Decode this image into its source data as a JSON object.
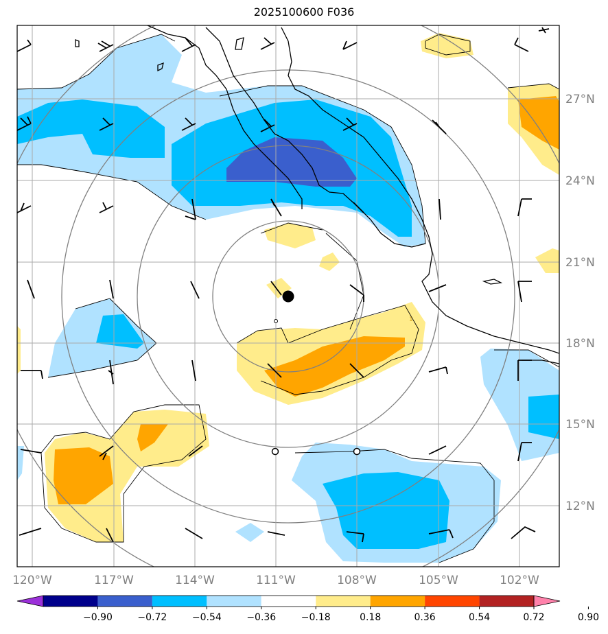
{
  "title": "2025100600 F036",
  "lon_labels": [
    "120°W",
    "117°W",
    "114°W",
    "111°W",
    "108°W",
    "105°W",
    "102°W"
  ],
  "lat_labels": [
    "27°N",
    "24°N",
    "21°N",
    "18°N",
    "15°N",
    "12°N"
  ],
  "colorbar": {
    "ticks": [
      "−0.90",
      "−0.72",
      "−0.54",
      "−0.36",
      "−0.18",
      "0.18",
      "0.36",
      "0.54",
      "0.72",
      "0.90"
    ],
    "colors": [
      "#9b30d9",
      "#00008b",
      "#3a5fcd",
      "#00bfff",
      "#b0e2ff",
      "#ffffff",
      "#ffec8b",
      "#ffa500",
      "#ff4500",
      "#b22222",
      "#ff82ab"
    ]
  },
  "contour_label": "1",
  "center_marker": "storm-center"
}
